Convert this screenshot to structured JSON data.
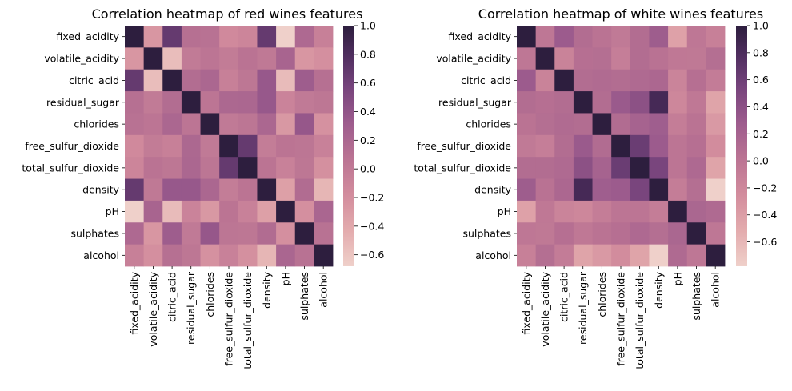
{
  "chart_data": [
    {
      "type": "heatmap",
      "title": "Correlation heatmap of red wines features",
      "labels": [
        "fixed_acidity",
        "volatile_acidity",
        "citric_acid",
        "residual_sugar",
        "chlorides",
        "free_sulfur_dioxide",
        "total_sulfur_dioxide",
        "density",
        "pH",
        "sulphates",
        "alcohol"
      ],
      "matrix": [
        [
          1.0,
          -0.26,
          0.67,
          0.11,
          0.09,
          -0.15,
          -0.11,
          0.67,
          -0.68,
          0.18,
          -0.06
        ],
        [
          -0.26,
          1.0,
          -0.55,
          0.0,
          0.06,
          -0.01,
          0.08,
          0.02,
          0.23,
          -0.26,
          -0.2
        ],
        [
          0.67,
          -0.55,
          1.0,
          0.14,
          0.2,
          -0.06,
          0.04,
          0.36,
          -0.54,
          0.31,
          0.11
        ],
        [
          0.11,
          0.0,
          0.14,
          1.0,
          0.06,
          0.19,
          0.2,
          0.36,
          -0.09,
          0.01,
          0.04
        ],
        [
          0.09,
          0.06,
          0.2,
          0.06,
          1.0,
          0.01,
          0.05,
          0.2,
          -0.27,
          0.37,
          -0.22
        ],
        [
          -0.15,
          -0.01,
          -0.06,
          0.19,
          0.01,
          1.0,
          0.67,
          -0.02,
          0.07,
          0.05,
          -0.07
        ],
        [
          -0.11,
          0.08,
          0.04,
          0.2,
          0.05,
          0.67,
          1.0,
          0.07,
          -0.07,
          0.04,
          -0.21
        ],
        [
          0.67,
          0.02,
          0.36,
          0.36,
          0.2,
          -0.02,
          0.07,
          1.0,
          -0.34,
          0.15,
          -0.5
        ],
        [
          -0.68,
          0.23,
          -0.54,
          -0.09,
          -0.27,
          0.07,
          -0.07,
          -0.34,
          1.0,
          -0.2,
          0.21
        ],
        [
          0.18,
          -0.26,
          0.31,
          0.01,
          0.37,
          0.05,
          0.04,
          0.15,
          -0.2,
          1.0,
          0.09
        ],
        [
          -0.06,
          -0.2,
          0.11,
          0.04,
          -0.22,
          -0.07,
          -0.21,
          -0.5,
          0.21,
          0.09,
          1.0
        ]
      ],
      "colorbar": {
        "min": -0.68,
        "max": 1.0,
        "ticks": [
          1.0,
          0.8,
          0.6,
          0.4,
          0.2,
          0.0,
          -0.2,
          -0.4,
          -0.6
        ],
        "tick_labels": [
          "1.0",
          "0.8",
          "0.6",
          "0.4",
          "0.2",
          "0.0",
          "−0.2",
          "−0.4",
          "−0.6"
        ]
      }
    },
    {
      "type": "heatmap",
      "title": "Correlation heatmap of white wines features",
      "labels": [
        "fixed_acidity",
        "volatile_acidity",
        "citric_acid",
        "residual_sugar",
        "chlorides",
        "free_sulfur_dioxide",
        "total_sulfur_dioxide",
        "density",
        "pH",
        "sulphates",
        "alcohol"
      ],
      "matrix": [
        [
          1.0,
          -0.02,
          0.29,
          0.09,
          0.02,
          -0.05,
          0.09,
          0.27,
          -0.43,
          -0.02,
          -0.12
        ],
        [
          -0.02,
          1.0,
          -0.15,
          0.06,
          0.07,
          -0.1,
          0.09,
          0.03,
          -0.03,
          -0.04,
          0.07
        ],
        [
          0.29,
          -0.15,
          1.0,
          0.09,
          0.11,
          0.09,
          0.12,
          0.15,
          -0.16,
          0.06,
          -0.08
        ],
        [
          0.09,
          0.06,
          0.09,
          1.0,
          0.09,
          0.3,
          0.4,
          0.84,
          -0.19,
          -0.03,
          -0.45
        ],
        [
          0.02,
          0.07,
          0.11,
          0.09,
          1.0,
          0.1,
          0.2,
          0.26,
          -0.09,
          0.02,
          -0.36
        ],
        [
          -0.05,
          -0.1,
          0.09,
          0.3,
          0.1,
          1.0,
          0.62,
          0.29,
          0.0,
          0.06,
          -0.25
        ],
        [
          0.09,
          0.09,
          0.12,
          0.4,
          0.2,
          0.62,
          1.0,
          0.53,
          0.0,
          0.13,
          -0.45
        ],
        [
          0.27,
          0.03,
          0.15,
          0.84,
          0.26,
          0.29,
          0.53,
          1.0,
          -0.09,
          0.07,
          -0.78
        ],
        [
          -0.43,
          -0.03,
          -0.16,
          -0.19,
          -0.09,
          0.0,
          0.0,
          -0.09,
          1.0,
          0.16,
          0.12
        ],
        [
          -0.02,
          -0.04,
          0.06,
          -0.03,
          0.02,
          0.06,
          0.13,
          0.07,
          0.16,
          1.0,
          -0.02
        ],
        [
          -0.12,
          0.07,
          -0.08,
          -0.45,
          -0.36,
          -0.25,
          -0.45,
          -0.78,
          0.12,
          -0.02,
          1.0
        ]
      ],
      "colorbar": {
        "min": -0.78,
        "max": 1.0,
        "ticks": [
          1.0,
          0.8,
          0.6,
          0.4,
          0.2,
          0.0,
          -0.2,
          -0.4,
          -0.6
        ],
        "tick_labels": [
          "1.0",
          "0.8",
          "0.6",
          "0.4",
          "0.2",
          "0.0",
          "−0.2",
          "−0.4",
          "−0.6"
        ]
      }
    }
  ]
}
